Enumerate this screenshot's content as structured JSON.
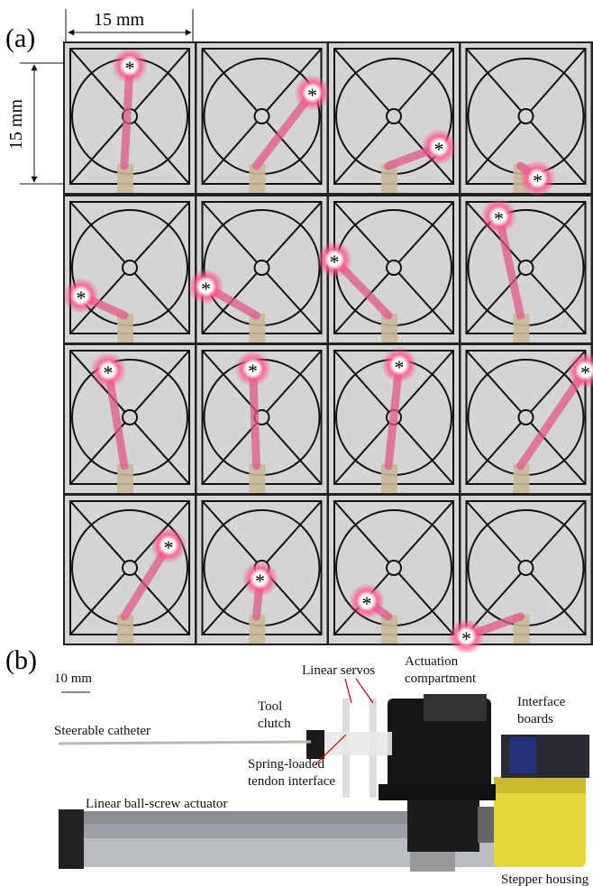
{
  "figure": {
    "panel_a": {
      "label": "(a)",
      "scale_x": "15 mm",
      "scale_y": "15 mm",
      "marker": "*"
    },
    "panel_b": {
      "label": "(b)",
      "scale": "10 mm",
      "annotations": {
        "linear_servos": [
          "Linear servos"
        ],
        "actuation": [
          "Actuation",
          "compartment"
        ],
        "interface_boards": [
          "Interface",
          "boards"
        ],
        "tool_clutch": [
          "Tool",
          "clutch"
        ],
        "catheter": [
          "Steerable catheter"
        ],
        "spring": [
          "Spring-loaded",
          "tendon interface"
        ],
        "ballscrew": [
          "Linear  ball-screw actuator"
        ],
        "stepper": [
          "Stepper housing"
        ]
      }
    }
  }
}
